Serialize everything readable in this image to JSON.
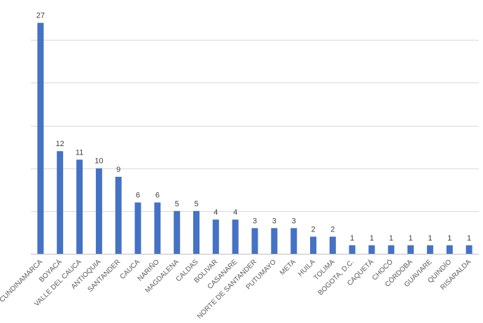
{
  "chart_data": {
    "type": "bar",
    "title": "",
    "xlabel": "",
    "ylabel": "",
    "ylim": [
      0,
      30
    ],
    "y_gridlines": [
      5,
      10,
      15,
      20,
      25,
      30
    ],
    "y_tick_labels_shown": false,
    "legend": "none",
    "bar_color": "#4472C4",
    "categories": [
      "CUNDINAMARCA",
      "BOYACÁ",
      "VALLE DEL CAUCA",
      "ANTIOQUIA",
      "SANTANDER",
      "CAUCA",
      "NARIÑO",
      "MAGDALENA",
      "CALDAS",
      "BOLIVAR",
      "CASANARE",
      "NORTE DE SANTANDER",
      "PUTUMAYO",
      "META",
      "HUILA",
      "TOLIMA",
      "BOGOTA, D.C.",
      "CAQUETÁ",
      "CHOCÓ",
      "CÓRDOBA",
      "GUAVIARE",
      "QUINDÍO",
      "RISARALDA"
    ],
    "values": [
      27,
      12,
      11,
      10,
      9,
      6,
      6,
      5,
      5,
      4,
      4,
      3,
      3,
      3,
      2,
      2,
      1,
      1,
      1,
      1,
      1,
      1,
      1
    ]
  }
}
